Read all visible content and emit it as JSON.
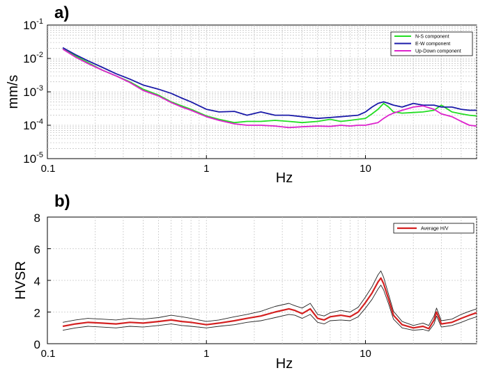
{
  "chart_data": [
    {
      "panel_label": "a)",
      "type": "line",
      "xscale": "log",
      "yscale": "log",
      "xlabel": "Hz",
      "ylabel": "mm/s",
      "xlim": [
        0.1,
        50
      ],
      "ylim": [
        1e-05,
        0.1
      ],
      "grid": true,
      "legend_position": "top-right",
      "x_ticks": [
        {
          "value": 0.1,
          "label": "0.1"
        },
        {
          "value": 1,
          "label": "1"
        },
        {
          "value": 10,
          "label": "10"
        }
      ],
      "y_ticks": [
        {
          "value": 1e-05,
          "base": "10",
          "exp": "-5"
        },
        {
          "value": 0.0001,
          "base": "10",
          "exp": "-4"
        },
        {
          "value": 0.001,
          "base": "10",
          "exp": "-3"
        },
        {
          "value": 0.01,
          "base": "10",
          "exp": "-2"
        },
        {
          "value": 0.1,
          "base": "10",
          "exp": "-1"
        }
      ],
      "series": [
        {
          "name": "N-S component",
          "color": "#22dd22",
          "x": [
            0.125,
            0.15,
            0.18,
            0.22,
            0.27,
            0.33,
            0.4,
            0.5,
            0.6,
            0.7,
            0.8,
            1.0,
            1.2,
            1.5,
            1.8,
            2.2,
            2.7,
            3.3,
            4.0,
            5.0,
            6.0,
            7.0,
            8.0,
            9.0,
            10.0,
            11.0,
            12.0,
            13.0,
            14.0,
            15.0,
            17.0,
            20.0,
            23.0,
            27.0,
            30.0,
            35.0,
            40.0,
            45.0,
            50.0
          ],
          "y": [
            0.019,
            0.012,
            0.0075,
            0.0045,
            0.003,
            0.002,
            0.0012,
            0.0008,
            0.0005,
            0.00038,
            0.0003,
            0.00019,
            0.00015,
            0.00012,
            0.00013,
            0.00013,
            0.00014,
            0.00013,
            0.00012,
            0.00013,
            0.00015,
            0.00013,
            0.00014,
            0.00015,
            0.00016,
            0.00022,
            0.0003,
            0.00045,
            0.00035,
            0.00025,
            0.00023,
            0.00024,
            0.00025,
            0.00028,
            0.0004,
            0.00025,
            0.00022,
            0.0002,
            0.00019
          ]
        },
        {
          "name": "E-W component",
          "color": "#1a1aa8",
          "x": [
            0.125,
            0.15,
            0.18,
            0.22,
            0.27,
            0.33,
            0.4,
            0.5,
            0.6,
            0.7,
            0.8,
            1.0,
            1.2,
            1.5,
            1.8,
            2.2,
            2.7,
            3.3,
            4.0,
            5.0,
            6.0,
            7.0,
            8.0,
            9.0,
            10.0,
            11.0,
            12.0,
            13.0,
            14.0,
            15.0,
            17.0,
            20.0,
            23.0,
            27.0,
            30.0,
            35.0,
            40.0,
            45.0,
            50.0
          ],
          "y": [
            0.021,
            0.013,
            0.0085,
            0.0055,
            0.0035,
            0.0024,
            0.0016,
            0.0012,
            0.0009,
            0.00065,
            0.0005,
            0.0003,
            0.00025,
            0.00026,
            0.0002,
            0.00025,
            0.0002,
            0.0002,
            0.00018,
            0.00016,
            0.00017,
            0.00018,
            0.00019,
            0.0002,
            0.00025,
            0.00035,
            0.00045,
            0.0005,
            0.00045,
            0.0004,
            0.00035,
            0.00045,
            0.0004,
            0.0004,
            0.00035,
            0.00035,
            0.0003,
            0.00028,
            0.00028
          ]
        },
        {
          "name": "Up-Down component",
          "color": "#dd22cc",
          "x": [
            0.125,
            0.15,
            0.18,
            0.22,
            0.27,
            0.33,
            0.4,
            0.5,
            0.6,
            0.7,
            0.8,
            1.0,
            1.2,
            1.5,
            1.8,
            2.2,
            2.7,
            3.3,
            4.0,
            5.0,
            6.0,
            7.0,
            8.0,
            9.0,
            10.0,
            11.0,
            12.0,
            13.0,
            14.0,
            15.0,
            17.0,
            20.0,
            23.0,
            27.0,
            30.0,
            35.0,
            40.0,
            45.0,
            50.0
          ],
          "y": [
            0.019,
            0.011,
            0.007,
            0.0045,
            0.003,
            0.0019,
            0.0011,
            0.00075,
            0.00048,
            0.00035,
            0.00028,
            0.00018,
            0.00014,
            0.00011,
            0.0001,
            0.0001,
            9.5e-05,
            8.5e-05,
            9e-05,
            9.5e-05,
            9.2e-05,
            0.0001,
            9.5e-05,
            0.0001,
            0.0001,
            0.00011,
            0.00012,
            0.00016,
            0.0002,
            0.00023,
            0.00028,
            0.00035,
            0.00038,
            0.0003,
            0.00022,
            0.00018,
            0.00013,
            0.0001,
            9.5e-05
          ]
        }
      ]
    },
    {
      "panel_label": "b)",
      "type": "line",
      "xscale": "log",
      "yscale": "linear",
      "xlabel": "Hz",
      "ylabel": "HVSR",
      "xlim": [
        0.1,
        50
      ],
      "ylim": [
        0,
        8
      ],
      "grid": true,
      "legend_position": "top-right",
      "x_ticks": [
        {
          "value": 0.1,
          "label": "0.1"
        },
        {
          "value": 1,
          "label": "1"
        },
        {
          "value": 10,
          "label": "10"
        }
      ],
      "y_ticks": [
        {
          "value": 0,
          "label": "0"
        },
        {
          "value": 2,
          "label": "2"
        },
        {
          "value": 4,
          "label": "4"
        },
        {
          "value": 6,
          "label": "6"
        },
        {
          "value": 8,
          "label": "8"
        }
      ],
      "x": [
        0.125,
        0.15,
        0.18,
        0.22,
        0.27,
        0.33,
        0.4,
        0.5,
        0.6,
        0.7,
        0.8,
        1.0,
        1.2,
        1.5,
        1.8,
        2.2,
        2.7,
        3.3,
        3.6,
        4.0,
        4.5,
        5.0,
        5.5,
        6.0,
        7.0,
        8.0,
        9.0,
        10.0,
        11.0,
        12.0,
        12.5,
        13.0,
        14.0,
        15.0,
        17.0,
        20.0,
        23.0,
        25.0,
        27.0,
        28.0,
        30.0,
        35.0,
        40.0,
        45.0,
        50.0
      ],
      "series": [
        {
          "name": "Average H/V",
          "color": "#d42020",
          "y": [
            1.1,
            1.25,
            1.35,
            1.3,
            1.25,
            1.35,
            1.3,
            1.4,
            1.5,
            1.4,
            1.35,
            1.2,
            1.3,
            1.45,
            1.6,
            1.75,
            2.0,
            2.2,
            2.1,
            1.9,
            2.2,
            1.6,
            1.5,
            1.7,
            1.8,
            1.7,
            2.0,
            2.6,
            3.2,
            3.9,
            4.15,
            3.8,
            2.8,
            1.8,
            1.2,
            1.0,
            1.1,
            0.95,
            1.5,
            2.0,
            1.25,
            1.35,
            1.6,
            1.8,
            1.95
          ]
        },
        {
          "name": "",
          "color": "#222222",
          "y": [
            1.35,
            1.5,
            1.6,
            1.55,
            1.5,
            1.6,
            1.55,
            1.65,
            1.8,
            1.7,
            1.6,
            1.4,
            1.5,
            1.7,
            1.85,
            2.05,
            2.35,
            2.55,
            2.4,
            2.25,
            2.55,
            1.85,
            1.75,
            1.95,
            2.1,
            2.0,
            2.3,
            2.95,
            3.6,
            4.35,
            4.6,
            4.2,
            3.1,
            2.05,
            1.4,
            1.15,
            1.3,
            1.15,
            1.75,
            2.25,
            1.45,
            1.55,
            1.85,
            2.05,
            2.2
          ]
        },
        {
          "name": "",
          "color": "#222222",
          "y": [
            0.85,
            1.0,
            1.1,
            1.05,
            1.0,
            1.1,
            1.05,
            1.15,
            1.25,
            1.15,
            1.1,
            1.0,
            1.1,
            1.2,
            1.35,
            1.45,
            1.65,
            1.85,
            1.8,
            1.6,
            1.85,
            1.35,
            1.25,
            1.45,
            1.5,
            1.45,
            1.7,
            2.25,
            2.8,
            3.45,
            3.7,
            3.4,
            2.5,
            1.55,
            1.0,
            0.85,
            0.9,
            0.8,
            1.25,
            1.75,
            1.05,
            1.15,
            1.35,
            1.55,
            1.7
          ]
        }
      ]
    }
  ]
}
